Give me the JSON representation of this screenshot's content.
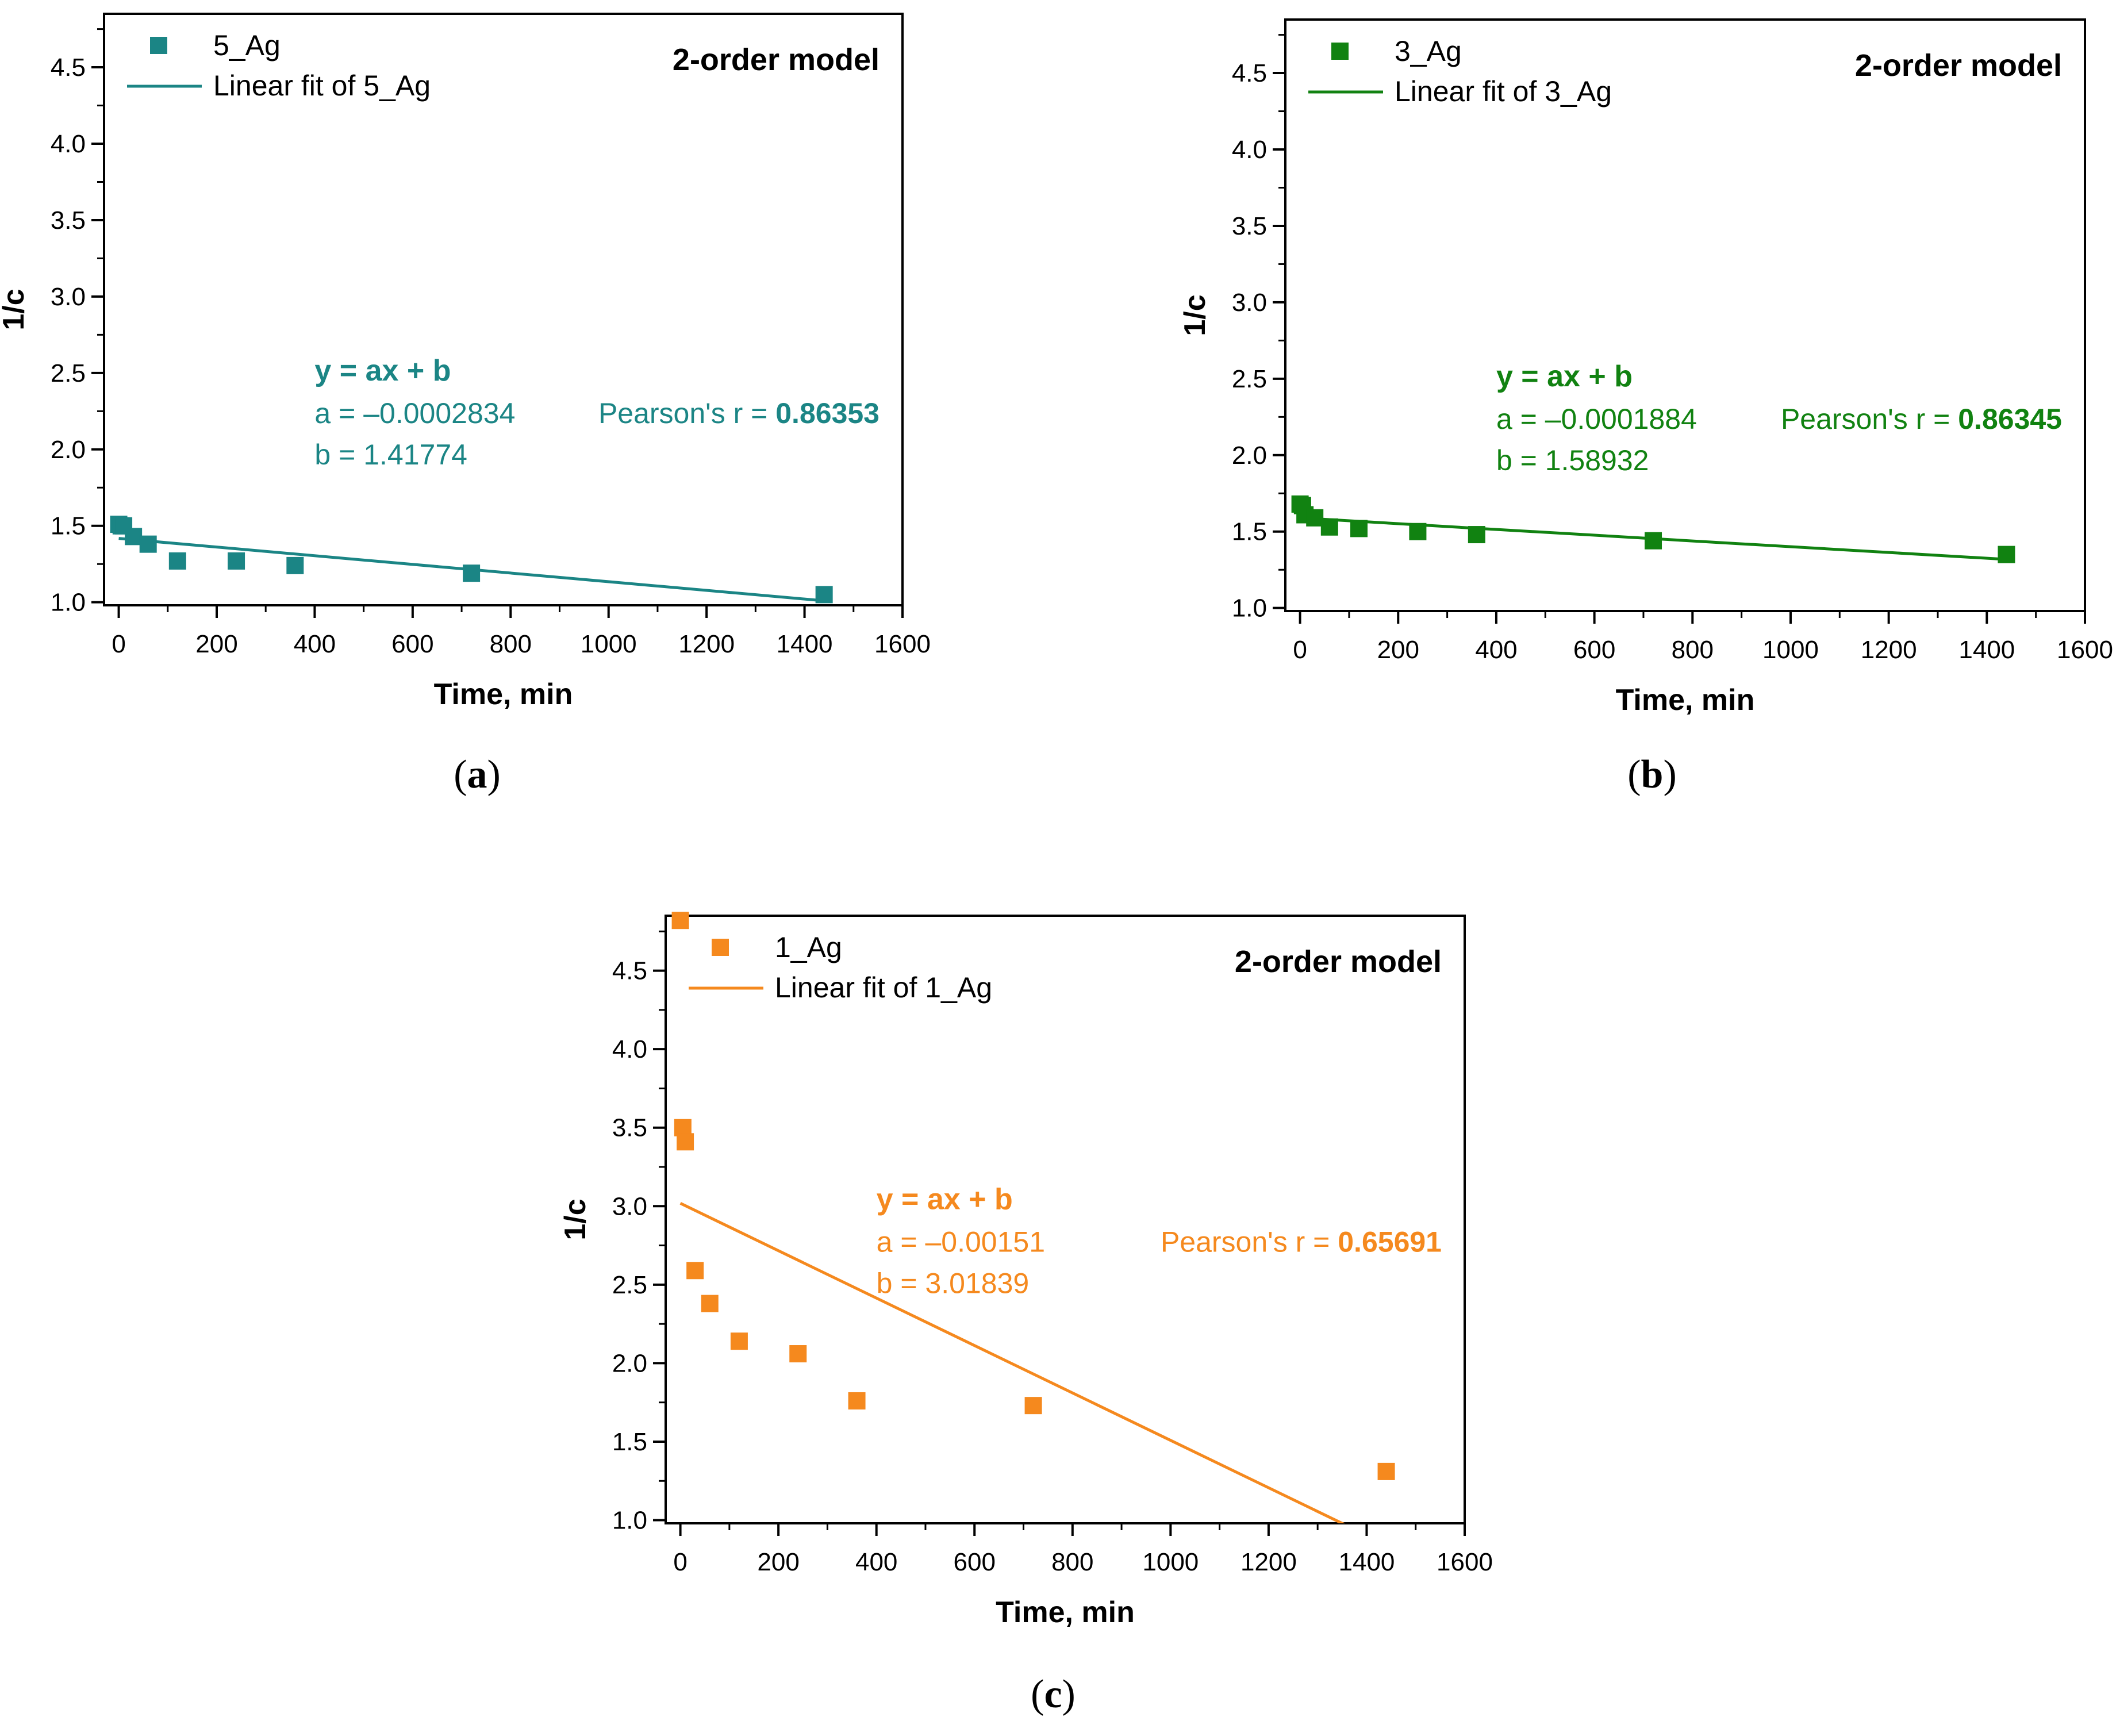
{
  "charts": [
    {
      "panel_label_letter": "a",
      "accent_color": "#1B8585",
      "model_label": "2-order model",
      "equation_label": "y = ax + b",
      "a_text": "a = –0.0002834",
      "b_text": "b = 1.41774",
      "pearson_prefix": "Pearson's r = ",
      "pearson_value": "0.86353",
      "legend_scatter": "5_Ag",
      "legend_line": "Linear fit of 5_Ag",
      "chart_data": {
        "type": "scatter",
        "xlabel": "Time, min",
        "ylabel": "1/c",
        "xlim": [
          -30,
          1600
        ],
        "ylim": [
          0.98,
          4.85
        ],
        "x_ticks": [
          0,
          200,
          400,
          600,
          800,
          1000,
          1200,
          1400,
          1600
        ],
        "y_ticks": [
          1.0,
          1.5,
          2.0,
          2.5,
          3.0,
          3.5,
          4.0,
          4.5
        ],
        "grid": false,
        "legend_position": "top-left",
        "series": [
          {
            "name": "5_Ag",
            "type": "scatter",
            "x": [
              0,
              5,
              10,
              30,
              60,
              120,
              240,
              360,
              720,
              1440
            ],
            "y": [
              1.51,
              1.5,
              1.5,
              1.43,
              1.38,
              1.27,
              1.27,
              1.24,
              1.19,
              1.05
            ]
          },
          {
            "name": "Linear fit of 5_Ag",
            "type": "line",
            "slope": -0.0002834,
            "intercept": 1.41774,
            "x_range": [
              0,
              1440
            ]
          }
        ]
      }
    },
    {
      "panel_label_letter": "b",
      "accent_color": "#118211",
      "model_label": "2-order model",
      "equation_label": "y = ax + b",
      "a_text": "a = –0.0001884",
      "b_text": "b = 1.58932",
      "pearson_prefix": "Pearson's r = ",
      "pearson_value": "0.86345",
      "legend_scatter": "3_Ag",
      "legend_line": "Linear fit of 3_Ag",
      "chart_data": {
        "type": "scatter",
        "xlabel": "Time, min",
        "ylabel": "1/c",
        "xlim": [
          -30,
          1600
        ],
        "ylim": [
          0.98,
          4.85
        ],
        "x_ticks": [
          0,
          200,
          400,
          600,
          800,
          1000,
          1200,
          1400,
          1600
        ],
        "y_ticks": [
          1.0,
          1.5,
          2.0,
          2.5,
          3.0,
          3.5,
          4.0,
          4.5
        ],
        "grid": false,
        "legend_position": "top-left",
        "series": [
          {
            "name": "3_Ag",
            "type": "scatter",
            "x": [
              0,
              5,
              10,
              30,
              60,
              120,
              240,
              360,
              720,
              1440
            ],
            "y": [
              1.68,
              1.67,
              1.61,
              1.59,
              1.53,
              1.52,
              1.5,
              1.48,
              1.44,
              1.35
            ]
          },
          {
            "name": "Linear fit of 3_Ag",
            "type": "line",
            "slope": -0.0001884,
            "intercept": 1.58932,
            "x_range": [
              0,
              1440
            ]
          }
        ]
      }
    },
    {
      "panel_label_letter": "c",
      "accent_color": "#F5891E",
      "model_label": "2-order model",
      "equation_label": "y = ax + b",
      "a_text": "a = –0.00151",
      "b_text": "b = 3.01839",
      "pearson_prefix": "Pearson's r = ",
      "pearson_value": "0.65691",
      "legend_scatter": "1_Ag",
      "legend_line": "Linear fit of 1_Ag",
      "chart_data": {
        "type": "scatter",
        "xlabel": "Time, min",
        "ylabel": "1/c",
        "xlim": [
          -30,
          1600
        ],
        "ylim": [
          0.98,
          4.85
        ],
        "x_ticks": [
          0,
          200,
          400,
          600,
          800,
          1000,
          1200,
          1400,
          1600
        ],
        "y_ticks": [
          1.0,
          1.5,
          2.0,
          2.5,
          3.0,
          3.5,
          4.0,
          4.5
        ],
        "grid": false,
        "legend_position": "top-left",
        "series": [
          {
            "name": "1_Ag",
            "type": "scatter",
            "x": [
              0,
              5,
              10,
              30,
              60,
              120,
              240,
              360,
              720,
              1440
            ],
            "y": [
              4.82,
              3.5,
              3.41,
              2.59,
              2.38,
              2.14,
              2.06,
              1.76,
              1.73,
              1.31
            ]
          },
          {
            "name": "Linear fit of 1_Ag",
            "type": "line",
            "slope": -0.00151,
            "intercept": 3.01839,
            "x_range": [
              0,
              1440
            ]
          }
        ]
      }
    }
  ]
}
